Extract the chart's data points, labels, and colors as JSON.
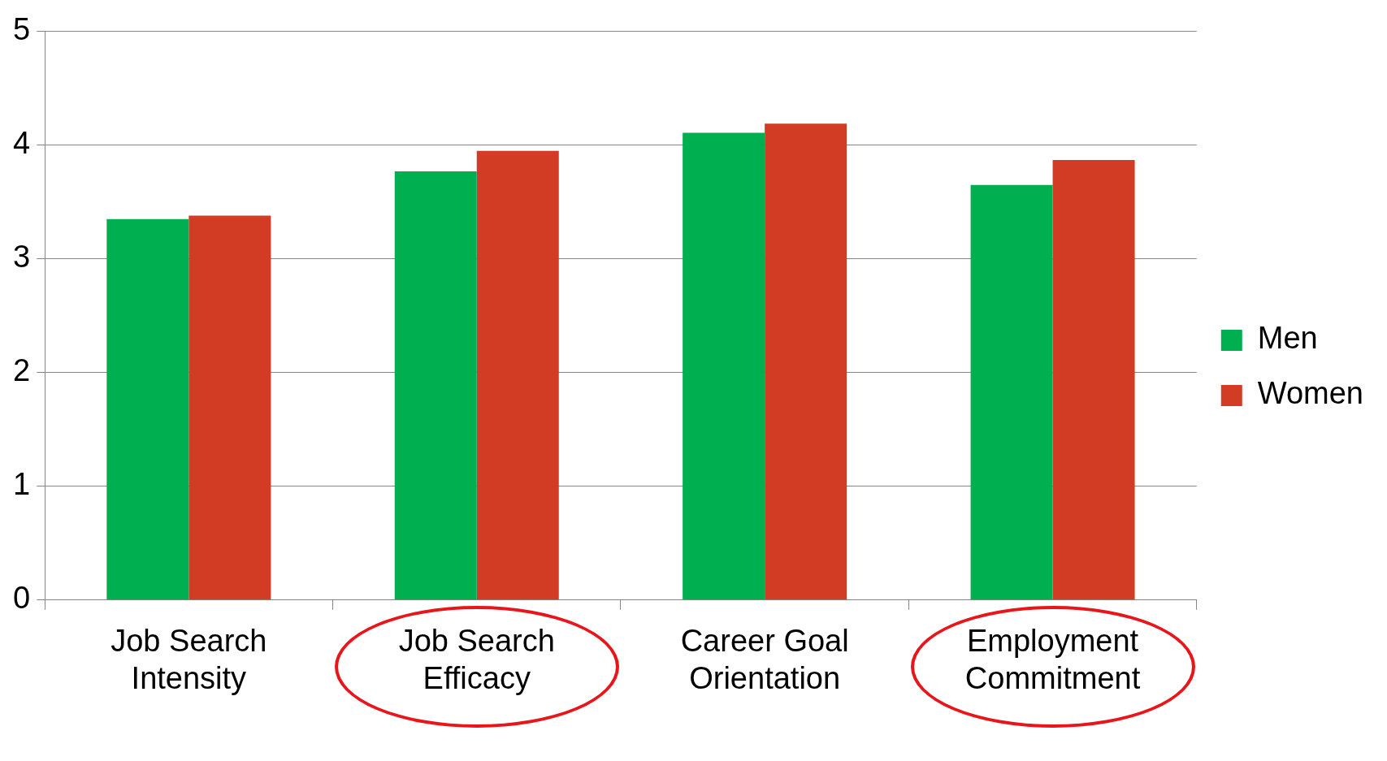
{
  "chart_data": {
    "type": "bar",
    "categories": [
      "Job Search Intensity",
      "Job Search Efficacy",
      "Career Goal Orientation",
      "Employment Commitment"
    ],
    "series": [
      {
        "name": "Men",
        "color": "#00b050",
        "values": [
          3.35,
          3.77,
          4.11,
          3.65
        ]
      },
      {
        "name": "Women",
        "color": "#d23b24",
        "values": [
          3.38,
          3.95,
          4.19,
          3.87
        ]
      }
    ],
    "ylim": [
      0,
      5
    ],
    "yticks": [
      0,
      1,
      2,
      3,
      4,
      5
    ],
    "grid": "y",
    "legend": "right"
  }
}
